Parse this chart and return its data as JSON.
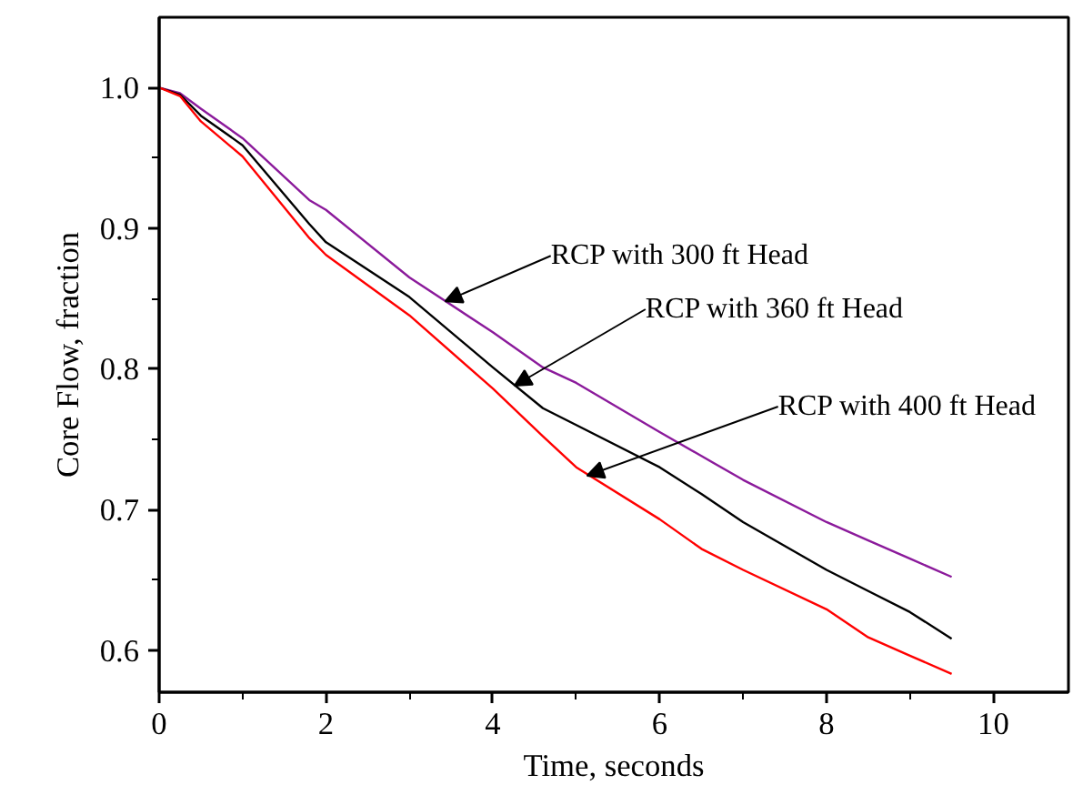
{
  "chart_data": {
    "type": "line",
    "xlabel": "Time, seconds",
    "ylabel": "Core Flow, fraction",
    "xlim": [
      0,
      10.9
    ],
    "ylim": [
      0.57,
      1.05
    ],
    "xticks": [
      0,
      2,
      4,
      6,
      8,
      10
    ],
    "yticks": [
      {
        "value": 0.6,
        "label": "0.6"
      },
      {
        "value": 0.7,
        "label": "0.7"
      },
      {
        "value": 0.8,
        "label": "0.8"
      },
      {
        "value": 0.9,
        "label": "0.9"
      },
      {
        "value": 1.0,
        "label": "1.0"
      }
    ],
    "grid": false,
    "line_style": "solid",
    "marker": "none",
    "x": [
      0,
      0.25,
      0.5,
      1,
      1.8,
      2,
      3,
      4,
      4.6,
      5,
      6,
      6.5,
      7,
      8,
      8.5,
      9,
      9.5
    ],
    "series": [
      {
        "color": "#8b1a9b",
        "values": [
          1.0,
          0.996,
          0.985,
          0.964,
          0.92,
          0.913,
          0.865,
          0.826,
          0.801,
          0.79,
          0.755,
          0.738,
          0.721,
          0.691,
          0.678,
          0.665,
          0.652
        ]
      },
      {
        "color": "#000000",
        "values": [
          1.0,
          0.995,
          0.98,
          0.959,
          0.903,
          0.89,
          0.851,
          0.801,
          0.772,
          0.76,
          0.73,
          0.711,
          0.691,
          0.657,
          0.642,
          0.627,
          0.608
        ]
      },
      {
        "color": "#ff0000",
        "values": [
          1.0,
          0.994,
          0.976,
          0.951,
          0.893,
          0.881,
          0.838,
          0.786,
          0.752,
          0.73,
          0.693,
          0.672,
          0.657,
          0.629,
          0.609,
          0.596,
          0.583
        ]
      }
    ],
    "annotations": [
      {
        "text": "RCP with 300 ft Head",
        "x": 3.43,
        "y": 0.848
      },
      {
        "text": "RCP with 360 ft Head",
        "x": 4.26,
        "y": 0.788
      },
      {
        "text": "RCP with 400 ft Head",
        "x": 5.13,
        "y": 0.724
      }
    ]
  }
}
